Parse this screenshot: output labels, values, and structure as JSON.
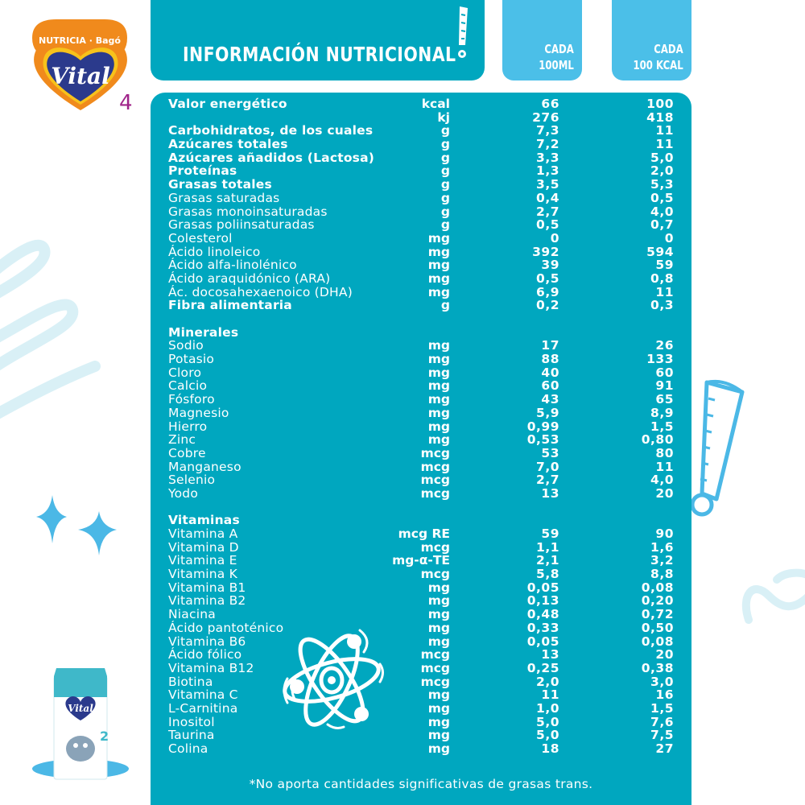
{
  "brand": {
    "maker": "NUTRICIA · Bagó",
    "product": "Vital",
    "stage": "4",
    "colors": {
      "orange": "#f08a1c",
      "navy": "#2b3a8c",
      "purple": "#a0248a",
      "yellow": "#f7c21b"
    }
  },
  "header": {
    "title": "INFORMACIÓN NUTRICIONAL",
    "col1": {
      "line1": "CADA",
      "line2": "100ML"
    },
    "col2": {
      "line1": "CADA",
      "line2": "100 KCAL"
    }
  },
  "colors": {
    "panel": "#00a7bf",
    "tab": "#4bbfe8",
    "deco_light": "#d9f0f6",
    "deco_accent": "#4bb8e6",
    "text": "#ffffff"
  },
  "table": {
    "macros": [
      {
        "name": "Valor energético",
        "unit": "kcal",
        "per_100ml": "66",
        "per_100kcal": "100",
        "bold": true
      },
      {
        "name": "",
        "unit": "kj",
        "per_100ml": "276",
        "per_100kcal": "418",
        "bold": true
      },
      {
        "name": "Carbohidratos, de los cuales",
        "unit": "g",
        "per_100ml": "7,3",
        "per_100kcal": "11",
        "bold": true
      },
      {
        "name": "Azúcares totales",
        "unit": "g",
        "per_100ml": "7,2",
        "per_100kcal": "11",
        "bold": true
      },
      {
        "name": "Azúcares añadidos (Lactosa)",
        "unit": "g",
        "per_100ml": "3,3",
        "per_100kcal": "5,0",
        "bold": true
      },
      {
        "name": "Proteínas",
        "unit": "g",
        "per_100ml": "1,3",
        "per_100kcal": "2,0",
        "bold": true
      },
      {
        "name": "Grasas totales",
        "unit": "g",
        "per_100ml": "3,5",
        "per_100kcal": "5,3",
        "bold": true
      },
      {
        "name": "Grasas saturadas",
        "unit": "g",
        "per_100ml": "0,4",
        "per_100kcal": "0,5",
        "bold": false
      },
      {
        "name": "Grasas monoinsaturadas",
        "unit": "g",
        "per_100ml": "2,7",
        "per_100kcal": "4,0",
        "bold": false
      },
      {
        "name": "Grasas poliinsaturadas",
        "unit": "g",
        "per_100ml": "0,5",
        "per_100kcal": "0,7",
        "bold": false
      },
      {
        "name": "Colesterol",
        "unit": "mg",
        "per_100ml": "0",
        "per_100kcal": "0",
        "bold": false
      },
      {
        "name": "Ácido linoleico",
        "unit": "mg",
        "per_100ml": "392",
        "per_100kcal": "594",
        "bold": false
      },
      {
        "name": "Ácido alfa-linolénico",
        "unit": "mg",
        "per_100ml": "39",
        "per_100kcal": "59",
        "bold": false
      },
      {
        "name": "Ácido araquidónico (ARA)",
        "unit": "mg",
        "per_100ml": "0,5",
        "per_100kcal": "0,8",
        "bold": false
      },
      {
        "name": "Ác. docosahexaenoico (DHA)",
        "unit": "mg",
        "per_100ml": "6,9",
        "per_100kcal": "11",
        "bold": false
      },
      {
        "name": "Fibra alimentaria",
        "unit": "g",
        "per_100ml": "0,2",
        "per_100kcal": "0,3",
        "bold": true
      }
    ],
    "minerals_title": "Minerales",
    "minerals": [
      {
        "name": "Sodio",
        "unit": "mg",
        "per_100ml": "17",
        "per_100kcal": "26"
      },
      {
        "name": "Potasio",
        "unit": "mg",
        "per_100ml": "88",
        "per_100kcal": "133"
      },
      {
        "name": "Cloro",
        "unit": "mg",
        "per_100ml": "40",
        "per_100kcal": "60"
      },
      {
        "name": "Calcio",
        "unit": "mg",
        "per_100ml": "60",
        "per_100kcal": "91"
      },
      {
        "name": "Fósforo",
        "unit": "mg",
        "per_100ml": "43",
        "per_100kcal": "65"
      },
      {
        "name": "Magnesio",
        "unit": "mg",
        "per_100ml": "5,9",
        "per_100kcal": "8,9"
      },
      {
        "name": "Hierro",
        "unit": "mg",
        "per_100ml": "0,99",
        "per_100kcal": "1,5"
      },
      {
        "name": "Zinc",
        "unit": "mg",
        "per_100ml": "0,53",
        "per_100kcal": "0,80"
      },
      {
        "name": "Cobre",
        "unit": "mcg",
        "per_100ml": "53",
        "per_100kcal": "80"
      },
      {
        "name": "Manganeso",
        "unit": "mcg",
        "per_100ml": "7,0",
        "per_100kcal": "11"
      },
      {
        "name": "Selenio",
        "unit": "mcg",
        "per_100ml": "2,7",
        "per_100kcal": "4,0"
      },
      {
        "name": "Yodo",
        "unit": "mcg",
        "per_100ml": "13",
        "per_100kcal": "20"
      }
    ],
    "vitamins_title": "Vitaminas",
    "vitamins": [
      {
        "name": "Vitamina A",
        "unit": "mcg RE",
        "per_100ml": "59",
        "per_100kcal": "90"
      },
      {
        "name": "Vitamina D",
        "unit": "mcg",
        "per_100ml": "1,1",
        "per_100kcal": "1,6"
      },
      {
        "name": "Vitamina E",
        "unit": "mg-α-TE",
        "per_100ml": "2,1",
        "per_100kcal": "3,2"
      },
      {
        "name": "Vitamina K",
        "unit": "mcg",
        "per_100ml": "5,8",
        "per_100kcal": "8,8"
      },
      {
        "name": "Vitamina B1",
        "unit": "mg",
        "per_100ml": "0,05",
        "per_100kcal": "0,08"
      },
      {
        "name": "Vitamina B2",
        "unit": "mg",
        "per_100ml": "0,13",
        "per_100kcal": "0,20"
      },
      {
        "name": "Niacina",
        "unit": "mg",
        "per_100ml": "0,48",
        "per_100kcal": "0,72"
      },
      {
        "name": "Ácido pantoténico",
        "unit": "mg",
        "per_100ml": "0,33",
        "per_100kcal": "0,50"
      },
      {
        "name": "Vitamina B6",
        "unit": "mg",
        "per_100ml": "0,05",
        "per_100kcal": "0,08"
      },
      {
        "name": "Ácido fólico",
        "unit": "mcg",
        "per_100ml": "13",
        "per_100kcal": "20"
      },
      {
        "name": "Vitamina B12",
        "unit": "mcg",
        "per_100ml": "0,25",
        "per_100kcal": "0,38"
      },
      {
        "name": "Biotina",
        "unit": "mcg",
        "per_100ml": "2,0",
        "per_100kcal": "3,0"
      },
      {
        "name": "Vitamina C",
        "unit": "mg",
        "per_100ml": "11",
        "per_100kcal": "16"
      },
      {
        "name": "L-Carnitina",
        "unit": "mg",
        "per_100ml": "1,0",
        "per_100kcal": "1,5"
      },
      {
        "name": "Inositol",
        "unit": "mg",
        "per_100ml": "5,0",
        "per_100kcal": "7,6"
      },
      {
        "name": "Taurina",
        "unit": "mg",
        "per_100ml": "5,0",
        "per_100kcal": "7,5"
      },
      {
        "name": "Colina",
        "unit": "mg",
        "per_100ml": "18",
        "per_100kcal": "27"
      }
    ]
  },
  "footnote": "*No aporta cantidades significativas de grasas trans.",
  "product_image": {
    "label": "Vital 2 carton with elephant",
    "pack_text": "Vital"
  },
  "icons": [
    "logo-heart",
    "exclamation-icon",
    "sparkle-icon",
    "atom-icon",
    "squiggle-decoration"
  ]
}
